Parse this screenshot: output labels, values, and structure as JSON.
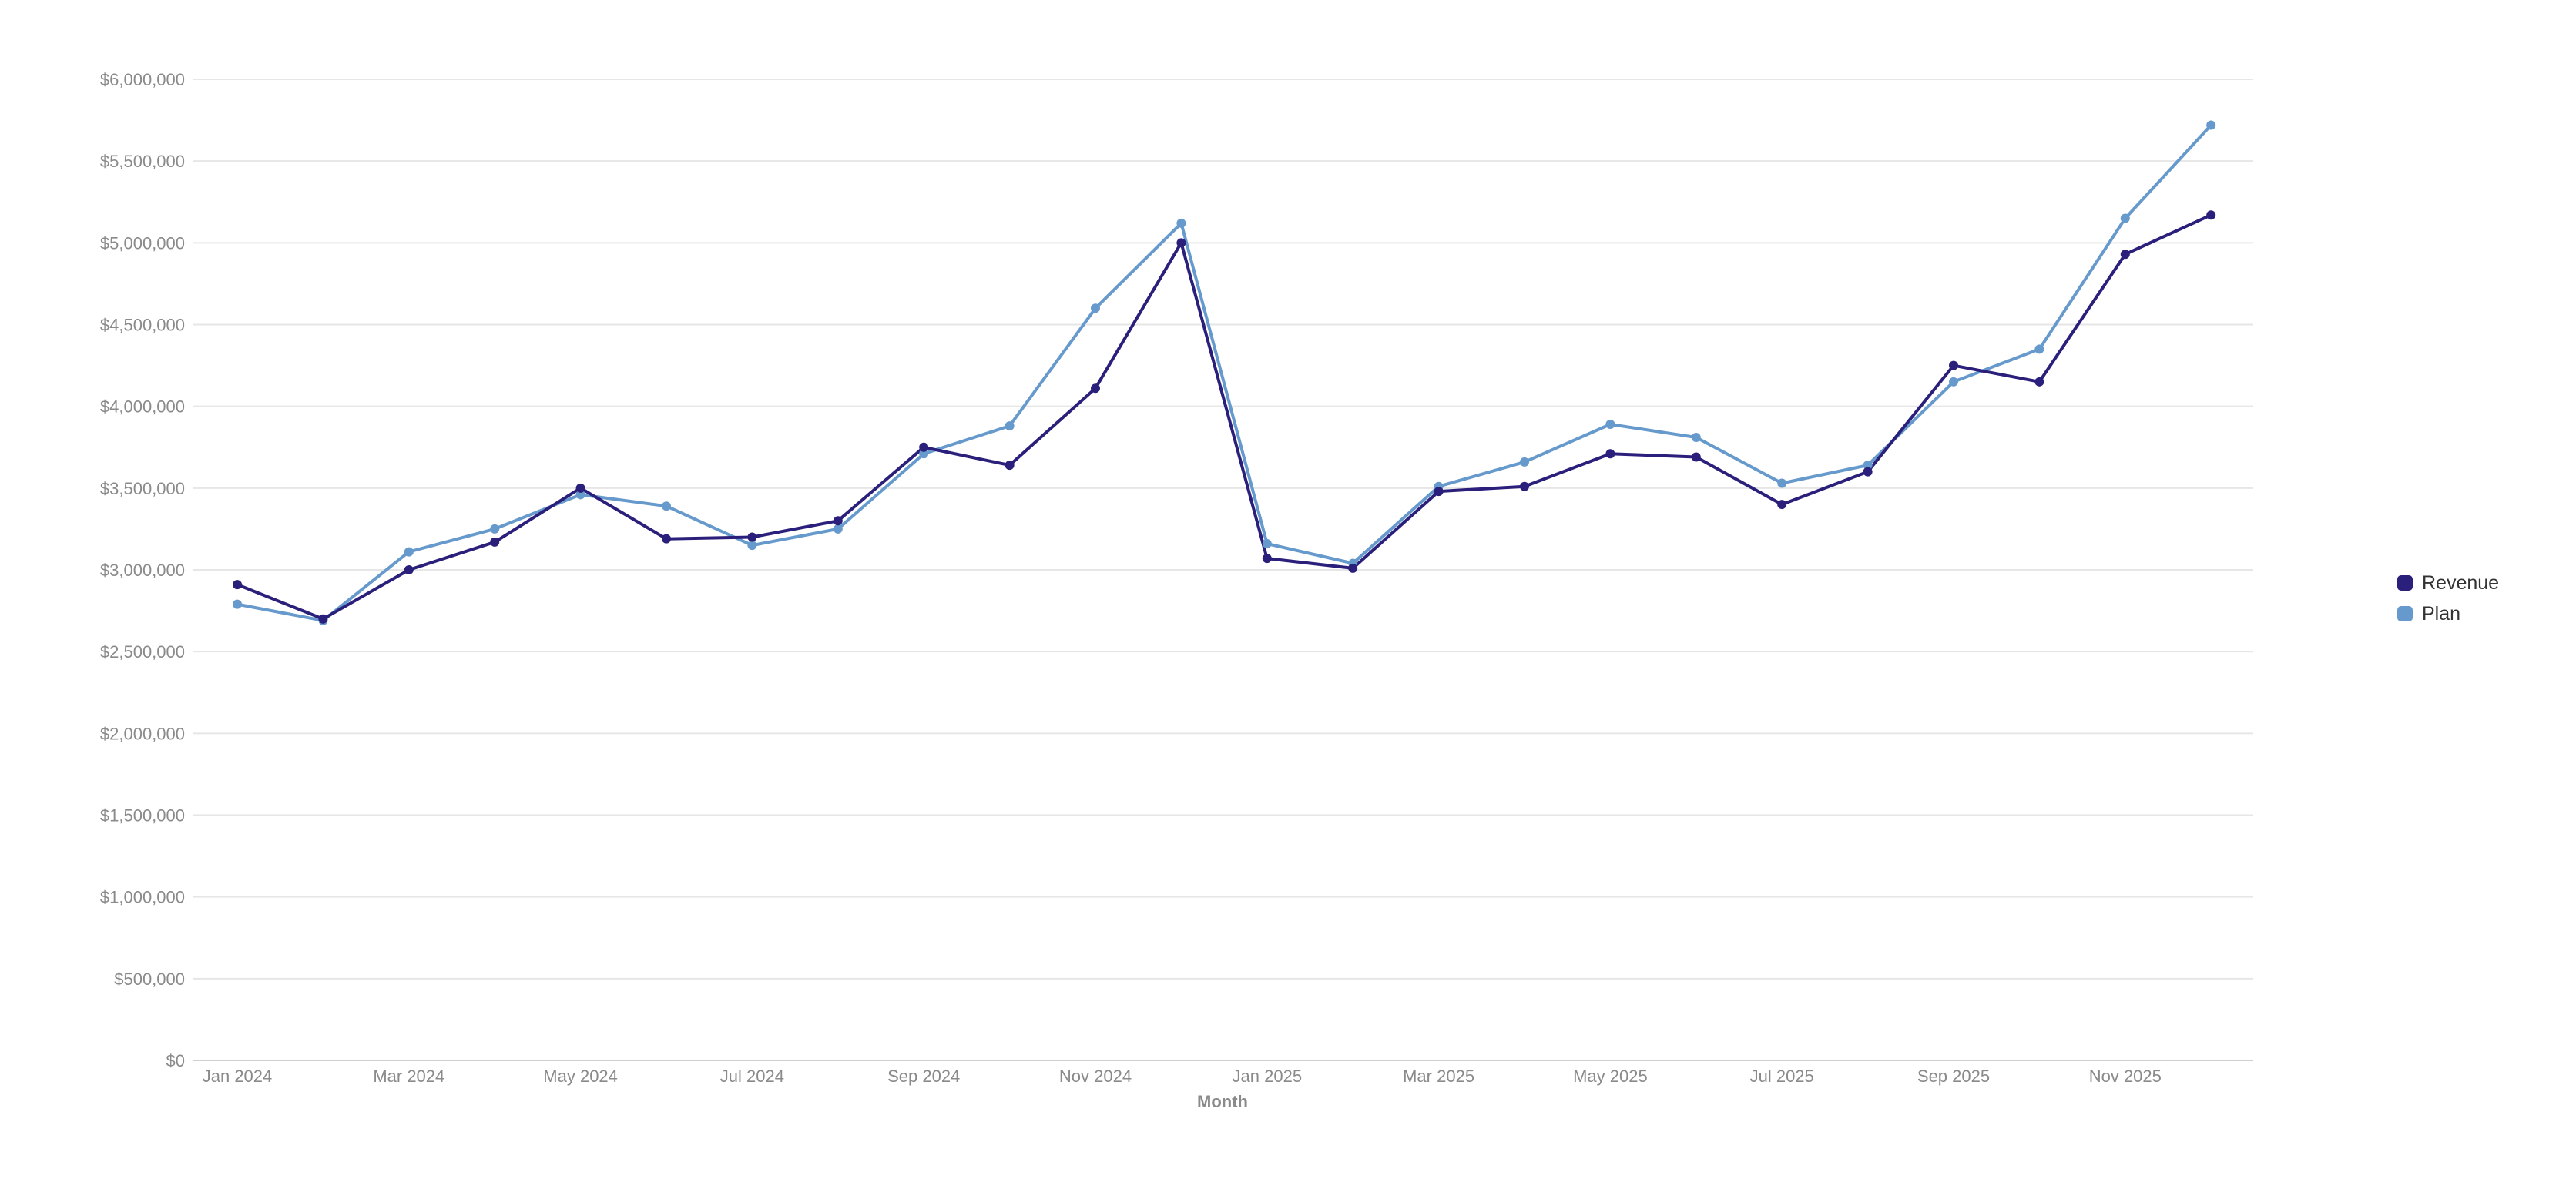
{
  "chart_data": {
    "type": "line",
    "xlabel": "Month",
    "ylabel": "",
    "ylim": [
      0,
      6000000
    ],
    "yticks": [
      0,
      500000,
      1000000,
      1500000,
      2000000,
      2500000,
      3000000,
      3500000,
      4000000,
      4500000,
      5000000,
      5500000,
      6000000
    ],
    "ytick_labels": [
      "$0",
      "$500,000",
      "$1,000,000",
      "$1,500,000",
      "$2,000,000",
      "$2,500,000",
      "$3,000,000",
      "$3,500,000",
      "$4,000,000",
      "$4,500,000",
      "$5,000,000",
      "$5,500,000",
      "$6,000,000"
    ],
    "categories": [
      "Jan 2024",
      "Feb 2024",
      "Mar 2024",
      "Apr 2024",
      "May 2024",
      "Jun 2024",
      "Jul 2024",
      "Aug 2024",
      "Sep 2024",
      "Oct 2024",
      "Nov 2024",
      "Dec 2024",
      "Jan 2025",
      "Feb 2025",
      "Mar 2025",
      "Apr 2025",
      "May 2025",
      "Jun 2025",
      "Jul 2025",
      "Aug 2025",
      "Sep 2025",
      "Oct 2025",
      "Nov 2025",
      "Dec 2025"
    ],
    "xtick_labels": [
      "Jan 2024",
      "",
      "Mar 2024",
      "",
      "May 2024",
      "",
      "Jul 2024",
      "",
      "Sep 2024",
      "",
      "Nov 2024",
      "",
      "Jan 2025",
      "",
      "Mar 2025",
      "",
      "May 2025",
      "",
      "Jul 2025",
      "",
      "Sep 2025",
      "",
      "Nov 2025",
      ""
    ],
    "grid": true,
    "legend_position": "right",
    "series": [
      {
        "name": "Revenue",
        "color": "#2a1f7a",
        "values": [
          2910000,
          2700000,
          3000000,
          3170000,
          3500000,
          3190000,
          3200000,
          3300000,
          3750000,
          3640000,
          4110000,
          5000000,
          3070000,
          3010000,
          3480000,
          3510000,
          3710000,
          3690000,
          3400000,
          3600000,
          4250000,
          4150000,
          4930000,
          5170000
        ]
      },
      {
        "name": "Plan",
        "color": "#6699cc",
        "values": [
          2790000,
          2690000,
          3110000,
          3250000,
          3460000,
          3390000,
          3150000,
          3250000,
          3710000,
          3880000,
          4600000,
          5120000,
          3160000,
          3040000,
          3510000,
          3660000,
          3890000,
          3810000,
          3530000,
          3640000,
          4150000,
          4350000,
          5150000,
          5720000
        ]
      }
    ]
  }
}
